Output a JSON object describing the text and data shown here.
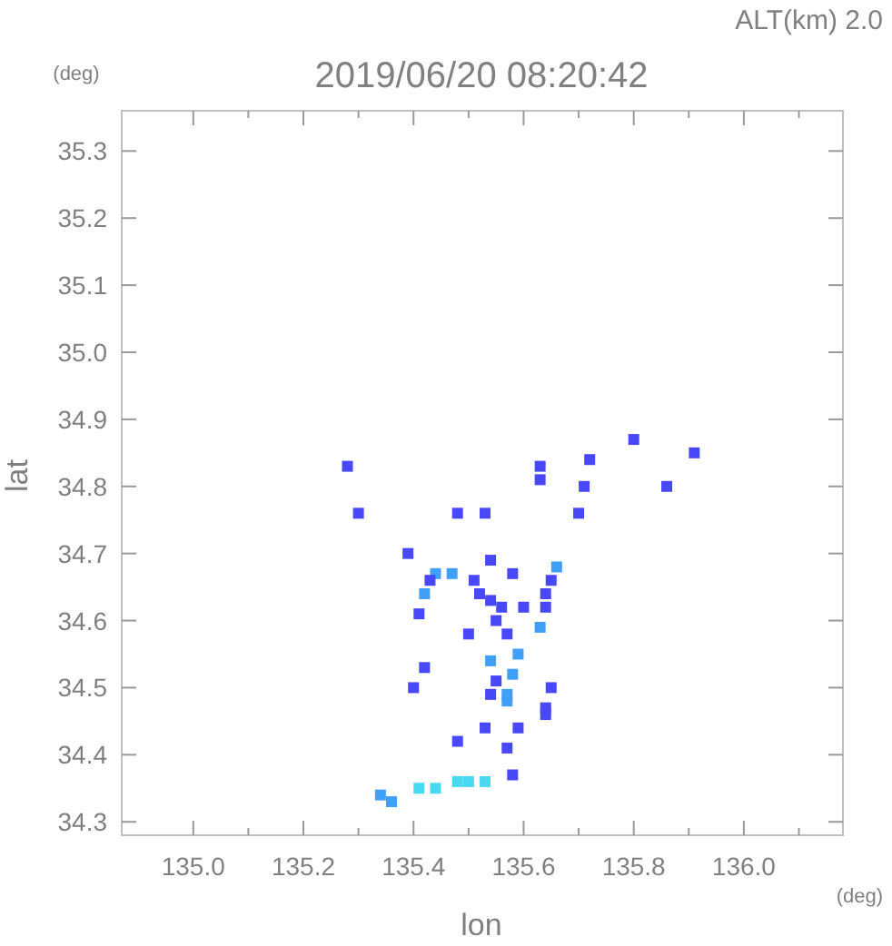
{
  "chart_data": {
    "type": "scatter",
    "title": "2019/06/20 08:20:42",
    "subtitle": "ALT(km) 2.0",
    "xlabel": "lon",
    "ylabel": "lat",
    "annotations": [
      "(deg)",
      "(deg)"
    ],
    "marker": "square",
    "grid": false,
    "xlim": [
      134.87,
      136.18
    ],
    "ylim": [
      34.28,
      35.36
    ],
    "xticks": [
      {
        "value": 135.0,
        "label": "135.0"
      },
      {
        "value": 135.1,
        "label": null
      },
      {
        "value": 135.2,
        "label": "135.2"
      },
      {
        "value": 135.3,
        "label": null
      },
      {
        "value": 135.4,
        "label": "135.4"
      },
      {
        "value": 135.5,
        "label": null
      },
      {
        "value": 135.6,
        "label": "135.6"
      },
      {
        "value": 135.7,
        "label": null
      },
      {
        "value": 135.8,
        "label": "135.8"
      },
      {
        "value": 135.9,
        "label": null
      },
      {
        "value": 136.0,
        "label": "136.0"
      },
      {
        "value": 136.1,
        "label": null
      }
    ],
    "yticks": [
      34.3,
      34.4,
      34.5,
      34.6,
      34.7,
      34.8,
      34.9,
      {
        "value": 35.0,
        "label": "35.0"
      },
      35.1,
      35.2,
      35.3
    ],
    "x": [
      135.8,
      135.91,
      135.86,
      135.63,
      135.63,
      135.72,
      135.71,
      135.48,
      135.53,
      135.7,
      135.28,
      135.3,
      135.39,
      135.44,
      135.47,
      135.54,
      135.58,
      135.66,
      135.65,
      135.43,
      135.42,
      135.52,
      135.51,
      135.54,
      135.56,
      135.6,
      135.64,
      135.64,
      135.41,
      135.63,
      135.55,
      135.57,
      135.59,
      135.54,
      135.58,
      135.55,
      135.54,
      135.57,
      135.65,
      135.64,
      135.64,
      135.57,
      135.42,
      135.4,
      135.5,
      135.53,
      135.59,
      135.48,
      135.57,
      135.58,
      135.41,
      135.44,
      135.48,
      135.5,
      135.53,
      135.36,
      135.34
    ],
    "values": [
      34.87,
      34.85,
      34.8,
      34.83,
      34.81,
      34.84,
      34.8,
      34.76,
      34.76,
      34.76,
      34.83,
      34.76,
      34.7,
      34.67,
      34.67,
      34.69,
      34.67,
      34.68,
      34.66,
      34.66,
      34.64,
      34.64,
      34.66,
      34.63,
      34.62,
      34.62,
      34.64,
      34.62,
      34.61,
      34.59,
      34.6,
      34.58,
      34.55,
      34.54,
      34.52,
      34.51,
      34.49,
      34.49,
      34.5,
      34.47,
      34.46,
      34.48,
      34.53,
      34.5,
      34.58,
      34.44,
      34.44,
      34.42,
      34.41,
      34.37,
      34.35,
      34.35,
      34.36,
      34.36,
      34.36,
      34.33,
      34.34
    ],
    "colors": [
      "#4848f8",
      "#4848f8",
      "#4848f8",
      "#4848f8",
      "#4848f8",
      "#4848f8",
      "#4848f8",
      "#4848f8",
      "#4848f8",
      "#4848f8",
      "#4848f8",
      "#4848f8",
      "#4848f8",
      "#40a0f8",
      "#40a0f8",
      "#4848f8",
      "#4848f8",
      "#40a0f8",
      "#4848f8",
      "#4848f8",
      "#40a0f8",
      "#4848f8",
      "#4848f8",
      "#4848f8",
      "#4848f8",
      "#4848f8",
      "#4848f8",
      "#4848f8",
      "#4848f8",
      "#40a0f8",
      "#4848f8",
      "#4848f8",
      "#40a0f8",
      "#40a0f8",
      "#40a0f8",
      "#4848f8",
      "#4848f8",
      "#40a0f8",
      "#4848f8",
      "#4848f8",
      "#4848f8",
      "#40a0f8",
      "#4848f8",
      "#4848f8",
      "#4848f8",
      "#4848f8",
      "#4848f8",
      "#4848f8",
      "#4848f8",
      "#4848f8",
      "#48d8f0",
      "#48d8f0",
      "#48d8f0",
      "#48d8f0",
      "#48d8f0",
      "#40a0f8",
      "#40a0f8"
    ]
  }
}
